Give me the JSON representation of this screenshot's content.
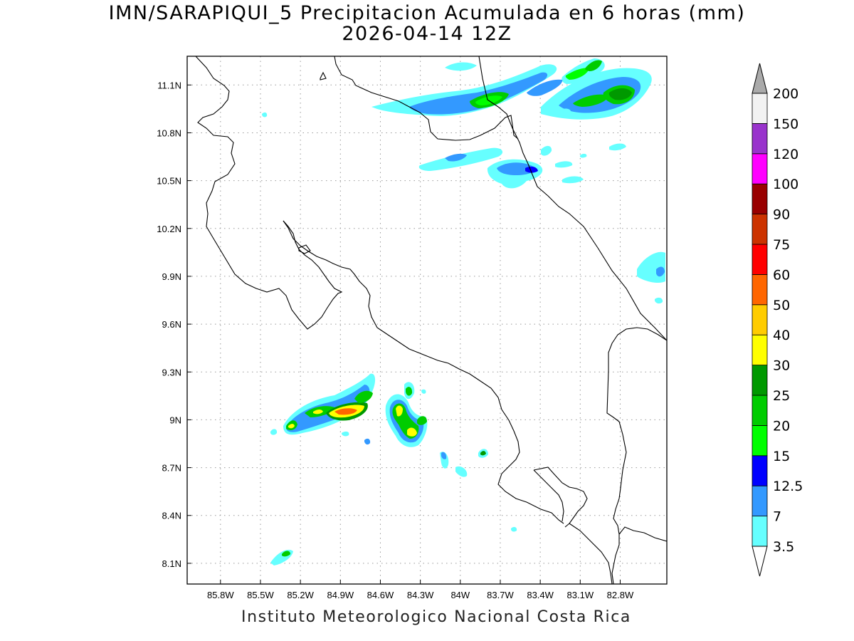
{
  "title_line1": "IMN/SARAPIQUI_5 Precipitacion Acumulada en 6 horas (mm)",
  "title_line2": "2026-04-14 12Z",
  "credit": "Instituto Meteorologico Nacional Costa Rica",
  "map": {
    "lon_range": [
      -86.05,
      -82.45
    ],
    "lat_range": [
      7.97,
      11.28
    ],
    "lon_ticks": [
      "85.8W",
      "85.5W",
      "85.2W",
      "84.9W",
      "84.6W",
      "84.3W",
      "84W",
      "83.7W",
      "83.4W",
      "83.1W",
      "82.8W"
    ],
    "lat_ticks": [
      "11.1N",
      "10.8N",
      "10.5N",
      "10.2N",
      "9.9N",
      "9.6N",
      "9.3N",
      "9N",
      "8.7N",
      "8.4N",
      "8.1N"
    ],
    "gridlines": "dotted",
    "coastline_color": "#000000"
  },
  "colorbar": {
    "levels": [
      "3.5",
      "7",
      "12.5",
      "15",
      "20",
      "25",
      "30",
      "40",
      "50",
      "60",
      "75",
      "90",
      "100",
      "120",
      "150",
      "200"
    ],
    "colors": [
      "#66ffff",
      "#3399ff",
      "#0000ff",
      "#00ff00",
      "#00cc00",
      "#009900",
      "#ffff00",
      "#ffcc00",
      "#ff6600",
      "#ff0000",
      "#cc3300",
      "#990000",
      "#ff00ff",
      "#9933cc",
      "#f2f2f2",
      "#aaaaaa"
    ],
    "under_color": "#ffffff",
    "over_color": "#aaaaaa"
  }
}
